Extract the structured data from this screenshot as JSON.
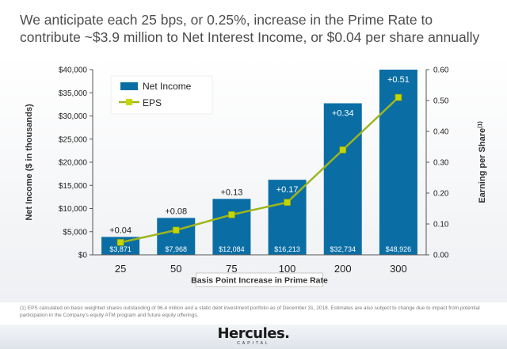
{
  "headline": "We anticipate each 25 bps, or 0.25%,  increase in the Prime Rate to contribute ~$3.9 million to Net Interest Income, or $0.04 per share annually",
  "footnote": "(1) EPS calculated on basic weighted shares outstanding of 96.4 million and a static debt investment portfolio as of December 31, 2018. Estimates are also subject to change due to impact from potential participation in the Company's equity ATM program and future equity offerings.",
  "logo": {
    "text": "Hercules.",
    "sub": "CAPITAL"
  },
  "colors": {
    "bar": "#0a6ea5",
    "line": "#9fb51d",
    "marker": "#c4d600",
    "text": "#222222"
  },
  "chart_data": {
    "type": "bar",
    "categories": [
      "25",
      "50",
      "75",
      "100",
      "200",
      "300"
    ],
    "series": [
      {
        "name": "Net Income",
        "type": "bar",
        "axis": "left",
        "values": [
          3871,
          7968,
          12084,
          16213,
          32734,
          48926
        ],
        "value_labels": [
          "$3,871",
          "$7,968",
          "$12,084",
          "$16,213",
          "$32,734",
          "$48,926"
        ]
      },
      {
        "name": "EPS",
        "type": "line",
        "axis": "right",
        "values": [
          0.04,
          0.08,
          0.13,
          0.17,
          0.34,
          0.51
        ],
        "value_labels": [
          "+0.04",
          "+0.08",
          "+0.13",
          "+0.17",
          "+0.34",
          "+0.51"
        ]
      }
    ],
    "xlabel": "Basis Point Increase in Prime Rate",
    "ylabel": "Net Income ($ in thousands)",
    "y2label": "Earning per Share",
    "y2label_note": "(1)",
    "ylim": [
      0,
      40000
    ],
    "y2lim": [
      0,
      0.6
    ],
    "yticks": [
      0,
      5000,
      10000,
      15000,
      20000,
      25000,
      30000,
      35000,
      40000
    ],
    "ytick_labels": [
      "$0",
      "$5,000",
      "$10,000",
      "$15,000",
      "$20,000",
      "$25,000",
      "$30,000",
      "$35,000",
      "$40,000"
    ],
    "y2ticks": [
      0,
      0.1,
      0.2,
      0.3,
      0.4,
      0.5,
      0.6
    ],
    "y2tick_labels": [
      "0.00",
      "0.10",
      "0.20",
      "0.30",
      "0.40",
      "0.50",
      "0.60"
    ],
    "legend": [
      "Net Income",
      "EPS"
    ],
    "legend_position": "top-left",
    "grid": false
  }
}
